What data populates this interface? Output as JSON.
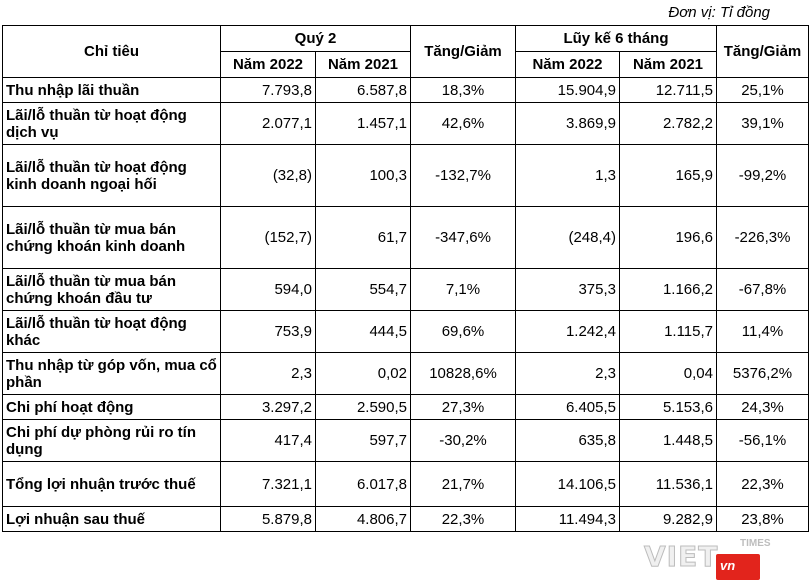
{
  "unit_note": "Đơn vị: Tỉ đồng",
  "headers": {
    "indicator": "Chỉ tiêu",
    "quarter": "Quý 2",
    "change1": "Tăng/Giảm",
    "cumulative": "Lũy kế 6 tháng",
    "change2": "Tăng/Giảm",
    "y2022_q": "Năm 2022",
    "y2021_q": "Năm 2021",
    "y2022_c": "Năm 2022",
    "y2021_c": "Năm 2021"
  },
  "rows": [
    {
      "label": "Thu nhập lãi thuần",
      "q22": "7.793,8",
      "q21": "6.587,8",
      "qchg": "18,3%",
      "c22": "15.904,9",
      "c21": "12.711,5",
      "cchg": "25,1%"
    },
    {
      "label": "Lãi/lỗ thuần từ hoạt động dịch vụ",
      "q22": "2.077,1",
      "q21": "1.457,1",
      "qchg": "42,6%",
      "c22": "3.869,9",
      "c21": "2.782,2",
      "cchg": "39,1%"
    },
    {
      "label": "Lãi/lỗ thuần từ hoạt động kinh doanh ngoại hối",
      "q22": "(32,8)",
      "q21": "100,3",
      "qchg": "-132,7%",
      "c22": "1,3",
      "c21": "165,9",
      "cchg": "-99,2%"
    },
    {
      "label": "Lãi/lỗ thuần từ mua bán chứng khoán kinh doanh",
      "q22": "(152,7)",
      "q21": "61,7",
      "qchg": "-347,6%",
      "c22": "(248,4)",
      "c21": "196,6",
      "cchg": "-226,3%"
    },
    {
      "label": "Lãi/lỗ thuần từ mua bán chứng khoán đầu tư",
      "q22": "594,0",
      "q21": "554,7",
      "qchg": "7,1%",
      "c22": "375,3",
      "c21": "1.166,2",
      "cchg": "-67,8%"
    },
    {
      "label": "Lãi/lỗ thuần từ hoạt động khác",
      "q22": "753,9",
      "q21": "444,5",
      "qchg": "69,6%",
      "c22": "1.242,4",
      "c21": "1.115,7",
      "cchg": "11,4%"
    },
    {
      "label": "Thu nhập từ góp vốn, mua cổ phần",
      "q22": "2,3",
      "q21": "0,02",
      "qchg": "10828,6%",
      "c22": "2,3",
      "c21": "0,04",
      "cchg": "5376,2%"
    },
    {
      "label": "Chi phí hoạt động",
      "q22": "3.297,2",
      "q21": "2.590,5",
      "qchg": "27,3%",
      "c22": "6.405,5",
      "c21": "5.153,6",
      "cchg": "24,3%"
    },
    {
      "label": "Chi phí dự phòng rủi ro tín dụng",
      "q22": "417,4",
      "q21": "597,7",
      "qchg": "-30,2%",
      "c22": "635,8",
      "c21": "1.448,5",
      "cchg": "-56,1%"
    },
    {
      "label": "Tổng lợi nhuận trước thuế",
      "q22": "7.321,1",
      "q21": "6.017,8",
      "qchg": "21,7%",
      "c22": "14.106,5",
      "c21": "11.536,1",
      "cchg": "22,3%"
    },
    {
      "label": "Lợi nhuận sau thuế",
      "q22": "5.879,8",
      "q21": "4.806,7",
      "qchg": "22,3%",
      "c22": "11.494,3",
      "c21": "9.282,9",
      "cchg": "23,8%"
    }
  ],
  "logo": {
    "text": "VIET",
    "badge": "vn",
    "sub": "TIMES"
  }
}
